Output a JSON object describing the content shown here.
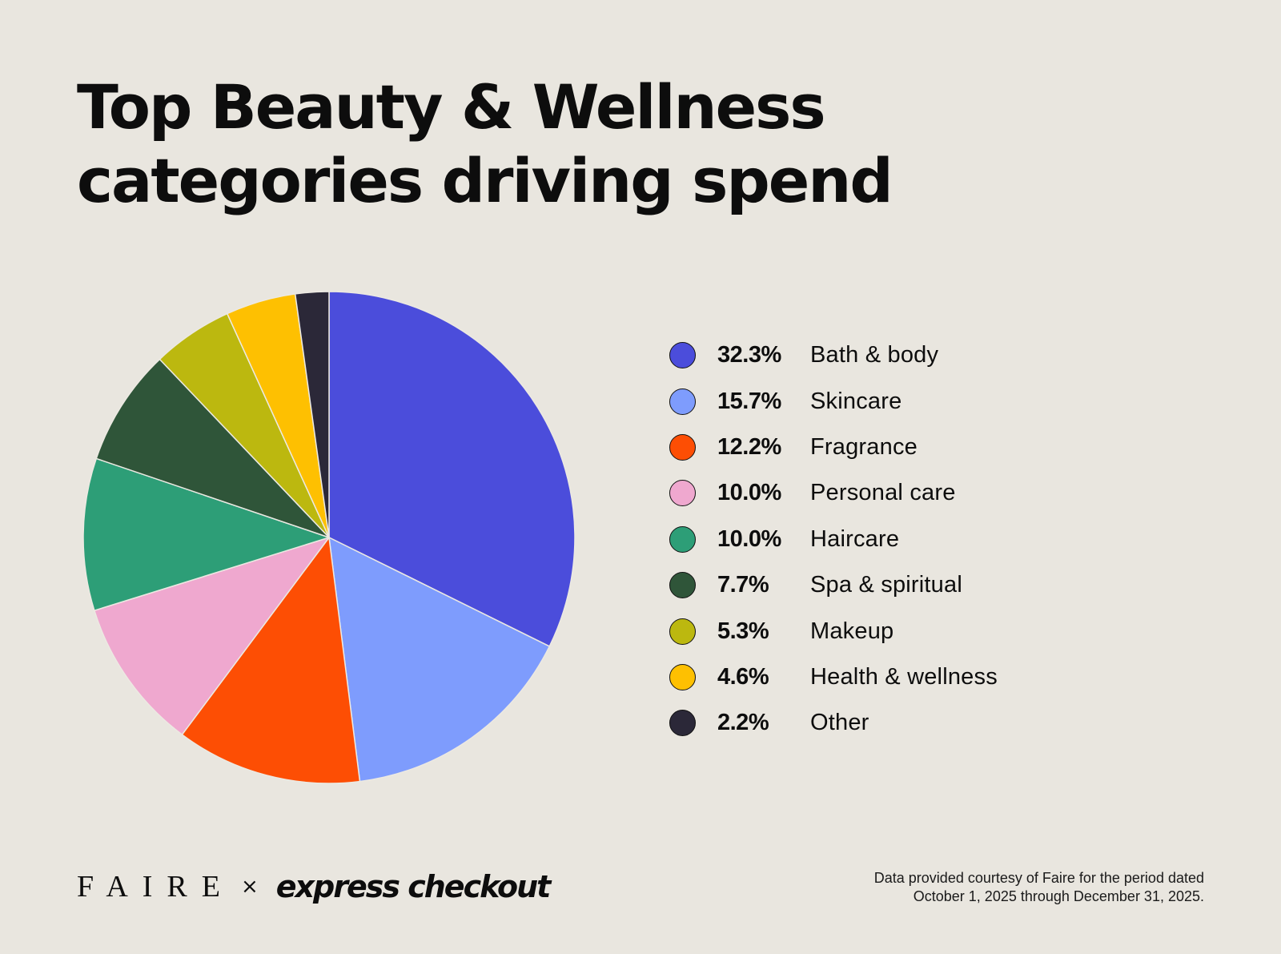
{
  "title_lines": [
    "Top Beauty & Wellness",
    "categories driving spend"
  ],
  "chart_data": {
    "type": "pie",
    "title": "Top Beauty & Wellness categories driving spend",
    "slices": [
      {
        "label": "Bath & body",
        "value": 32.3,
        "display": "32.3%",
        "color": "#4b4ddb"
      },
      {
        "label": "Skincare",
        "value": 15.7,
        "display": "15.7%",
        "color": "#7e9cfd"
      },
      {
        "label": "Fragrance",
        "value": 12.2,
        "display": "12.2%",
        "color": "#fd4e04"
      },
      {
        "label": "Personal care",
        "value": 10.0,
        "display": "10.0%",
        "color": "#efa8cf"
      },
      {
        "label": "Haircare",
        "value": 10.0,
        "display": "10.0%",
        "color": "#2d9e77"
      },
      {
        "label": "Spa & spiritual",
        "value": 7.7,
        "display": "7.7%",
        "color": "#2f5539"
      },
      {
        "label": "Makeup",
        "value": 5.3,
        "display": "5.3%",
        "color": "#bcb80f"
      },
      {
        "label": "Health & wellness",
        "value": 4.6,
        "display": "4.6%",
        "color": "#fec001"
      },
      {
        "label": "Other",
        "value": 2.2,
        "display": "2.2%",
        "color": "#2b2838"
      }
    ],
    "legend_position": "right"
  },
  "footer": {
    "brand": "FAIRE",
    "separator": "×",
    "partner": "express checkout",
    "note_lines": [
      "Data provided courtesy of Faire for the period dated",
      "October 1, 2025 through December 31, 2025."
    ]
  }
}
